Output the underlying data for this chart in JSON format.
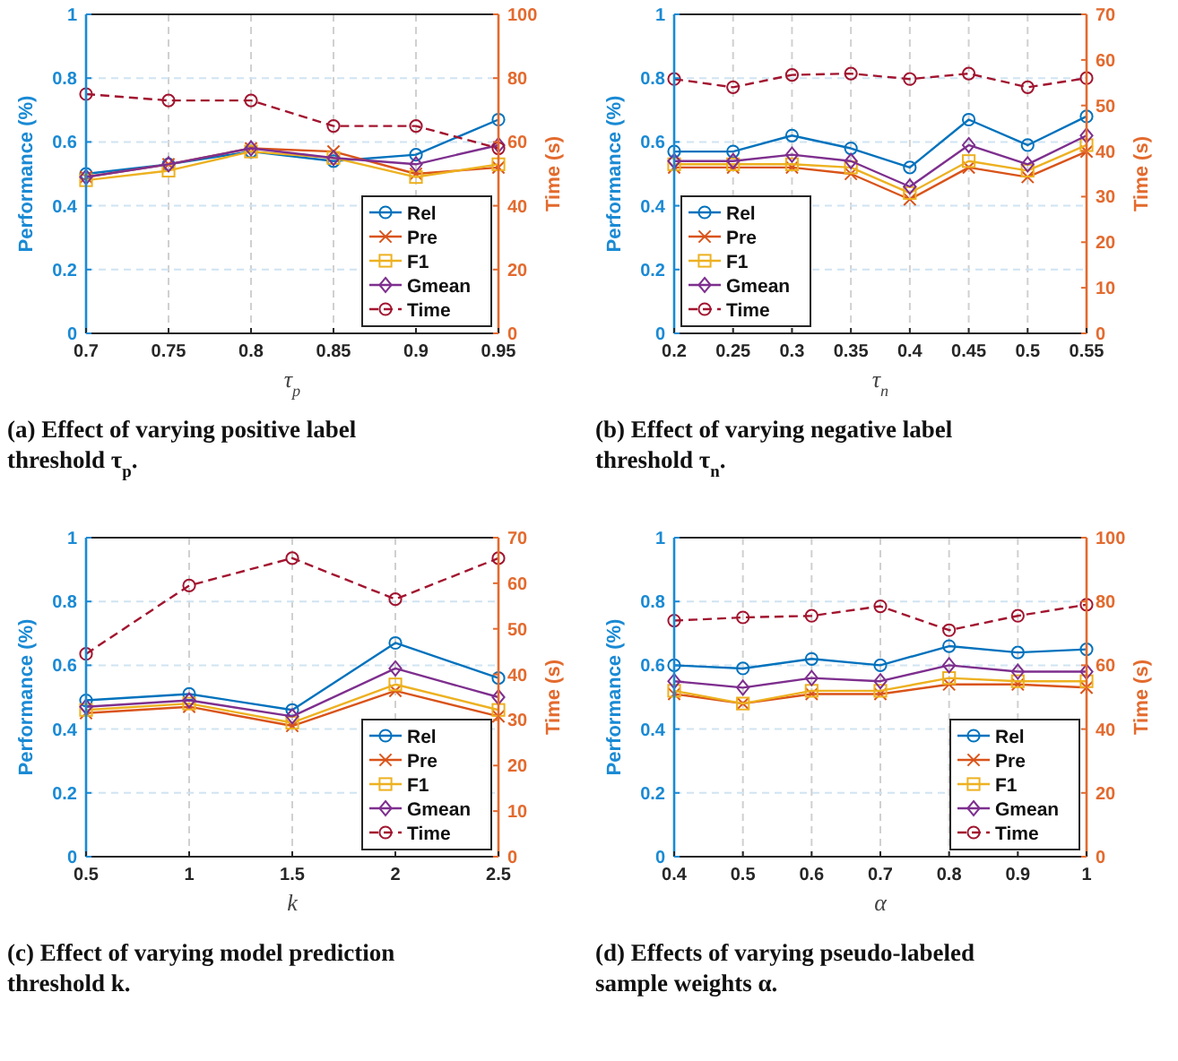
{
  "chart_data": [
    {
      "type": "line",
      "xlabel": "τ$_{p}$",
      "ylabel": "Performance (%)",
      "y2label": "Time (s)",
      "x": [
        0.7,
        0.75,
        0.8,
        0.85,
        0.9,
        0.95
      ],
      "xlim": [
        0.7,
        0.95
      ],
      "xticks": [
        0.7,
        0.75,
        0.8,
        0.85,
        0.9,
        0.95
      ],
      "ylim": [
        0,
        1
      ],
      "yticks": [
        0,
        0.2,
        0.4,
        0.6,
        0.8,
        1
      ],
      "y2lim": [
        0,
        100
      ],
      "y2ticks": [
        0,
        20,
        40,
        60,
        80,
        100
      ],
      "grid": true,
      "legend": "bottom right",
      "annotations": [
        "(a) Effect of varying positive label threshold τ$_{p}$."
      ],
      "series": [
        {
          "name": "Rel",
          "color": "#0072bd",
          "marker": "circle",
          "line_style": "solid",
          "values": [
            0.5,
            0.53,
            0.57,
            0.54,
            0.56,
            0.67
          ]
        },
        {
          "name": "Pre",
          "color": "#d95319",
          "marker": "cross",
          "line_style": "solid",
          "values": [
            0.49,
            0.53,
            0.58,
            0.57,
            0.5,
            0.52
          ]
        },
        {
          "name": "F1",
          "color": "#edb120",
          "marker": "square",
          "line_style": "solid",
          "values": [
            0.48,
            0.51,
            0.57,
            0.55,
            0.49,
            0.53
          ]
        },
        {
          "name": "Gmean",
          "color": "#7e2f8e",
          "marker": "diamond",
          "line_style": "solid",
          "values": [
            0.49,
            0.53,
            0.58,
            0.55,
            0.53,
            0.59
          ]
        },
        {
          "name": "Time",
          "color": "#a2142f",
          "marker": "circle",
          "line_style": "dashed",
          "axis": "y2",
          "values": [
            75,
            73,
            73,
            65,
            65,
            58
          ]
        }
      ]
    },
    {
      "type": "line",
      "xlabel": "τ$_{n}$",
      "ylabel": "Performance (%)",
      "y2label": "Time (s)",
      "x": [
        0.2,
        0.25,
        0.3,
        0.35,
        0.4,
        0.45,
        0.5,
        0.55
      ],
      "xlim": [
        0.2,
        0.55
      ],
      "xticks": [
        0.2,
        0.25,
        0.3,
        0.35,
        0.4,
        0.45,
        0.5,
        0.55
      ],
      "ylim": [
        0,
        1
      ],
      "yticks": [
        0,
        0.2,
        0.4,
        0.6,
        0.8,
        1
      ],
      "y2lim": [
        0,
        70
      ],
      "y2ticks": [
        0,
        10,
        20,
        30,
        40,
        50,
        60,
        70
      ],
      "grid": true,
      "legend": "bottom left",
      "annotations": [
        "(b) Effect of varying negative label threshold τ$_{n}$."
      ],
      "series": [
        {
          "name": "Rel",
          "color": "#0072bd",
          "marker": "circle",
          "line_style": "solid",
          "values": [
            0.57,
            0.57,
            0.62,
            0.58,
            0.52,
            0.67,
            0.59,
            0.68
          ]
        },
        {
          "name": "Pre",
          "color": "#d95319",
          "marker": "cross",
          "line_style": "solid",
          "values": [
            0.52,
            0.52,
            0.52,
            0.5,
            0.42,
            0.52,
            0.49,
            0.57
          ]
        },
        {
          "name": "F1",
          "color": "#edb120",
          "marker": "square",
          "line_style": "solid",
          "values": [
            0.53,
            0.53,
            0.53,
            0.52,
            0.44,
            0.54,
            0.51,
            0.59
          ]
        },
        {
          "name": "Gmean",
          "color": "#7e2f8e",
          "marker": "diamond",
          "line_style": "solid",
          "values": [
            0.54,
            0.54,
            0.56,
            0.54,
            0.46,
            0.59,
            0.53,
            0.62
          ]
        },
        {
          "name": "Time",
          "color": "#a2142f",
          "marker": "circle",
          "line_style": "dashed",
          "axis": "y2",
          "values": [
            55.8,
            54,
            56.7,
            57,
            55.8,
            57,
            54,
            56
          ]
        }
      ]
    },
    {
      "type": "line",
      "xlabel": "k",
      "ylabel": "Performance (%)",
      "y2label": "Time (s)",
      "x": [
        0.5,
        1,
        1.5,
        2,
        2.5
      ],
      "xlim": [
        0.5,
        2.5
      ],
      "xticks": [
        0.5,
        1,
        1.5,
        2,
        2.5
      ],
      "ylim": [
        0,
        1
      ],
      "yticks": [
        0,
        0.2,
        0.4,
        0.6,
        0.8,
        1
      ],
      "y2lim": [
        0,
        70
      ],
      "y2ticks": [
        0,
        10,
        20,
        30,
        40,
        50,
        60,
        70
      ],
      "grid": true,
      "legend": "bottom right",
      "annotations": [
        "(c) Effect of varying model prediction threshold k."
      ],
      "series": [
        {
          "name": "Rel",
          "color": "#0072bd",
          "marker": "circle",
          "line_style": "solid",
          "values": [
            0.49,
            0.51,
            0.46,
            0.67,
            0.56
          ]
        },
        {
          "name": "Pre",
          "color": "#d95319",
          "marker": "cross",
          "line_style": "solid",
          "values": [
            0.45,
            0.47,
            0.41,
            0.52,
            0.44
          ]
        },
        {
          "name": "F1",
          "color": "#edb120",
          "marker": "square",
          "line_style": "solid",
          "values": [
            0.46,
            0.48,
            0.42,
            0.54,
            0.46
          ]
        },
        {
          "name": "Gmean",
          "color": "#7e2f8e",
          "marker": "diamond",
          "line_style": "solid",
          "values": [
            0.47,
            0.49,
            0.44,
            0.59,
            0.5
          ]
        },
        {
          "name": "Time",
          "color": "#a2142f",
          "marker": "circle",
          "line_style": "dashed",
          "axis": "y2",
          "values": [
            44.5,
            59.5,
            65.5,
            56.5,
            65.5
          ]
        }
      ]
    },
    {
      "type": "line",
      "xlabel": "α",
      "ylabel": "Performance (%)",
      "y2label": "Time (s)",
      "x": [
        0.4,
        0.5,
        0.6,
        0.7,
        0.8,
        0.9,
        1
      ],
      "xlim": [
        0.4,
        1
      ],
      "xticks": [
        0.4,
        0.5,
        0.6,
        0.7,
        0.8,
        0.9,
        1
      ],
      "ylim": [
        0,
        1
      ],
      "yticks": [
        0,
        0.2,
        0.4,
        0.6,
        0.8,
        1
      ],
      "y2lim": [
        0,
        100
      ],
      "y2ticks": [
        0,
        20,
        40,
        60,
        80,
        100
      ],
      "grid": true,
      "legend": "bottom right",
      "annotations": [
        "(d) Effects of varying pseudo-labeled sample weights α."
      ],
      "series": [
        {
          "name": "Rel",
          "color": "#0072bd",
          "marker": "circle",
          "line_style": "solid",
          "values": [
            0.6,
            0.59,
            0.62,
            0.6,
            0.66,
            0.64,
            0.65
          ]
        },
        {
          "name": "Pre",
          "color": "#d95319",
          "marker": "cross",
          "line_style": "solid",
          "values": [
            0.51,
            0.48,
            0.51,
            0.51,
            0.54,
            0.54,
            0.53
          ]
        },
        {
          "name": "F1",
          "color": "#edb120",
          "marker": "square",
          "line_style": "solid",
          "values": [
            0.52,
            0.48,
            0.52,
            0.52,
            0.56,
            0.55,
            0.55
          ]
        },
        {
          "name": "Gmean",
          "color": "#7e2f8e",
          "marker": "diamond",
          "line_style": "solid",
          "values": [
            0.55,
            0.53,
            0.56,
            0.55,
            0.6,
            0.58,
            0.58
          ]
        },
        {
          "name": "Time",
          "color": "#a2142f",
          "marker": "circle",
          "line_style": "dashed",
          "axis": "y2",
          "values": [
            74,
            75,
            75.5,
            78.5,
            71,
            75.5,
            79
          ]
        }
      ]
    }
  ]
}
